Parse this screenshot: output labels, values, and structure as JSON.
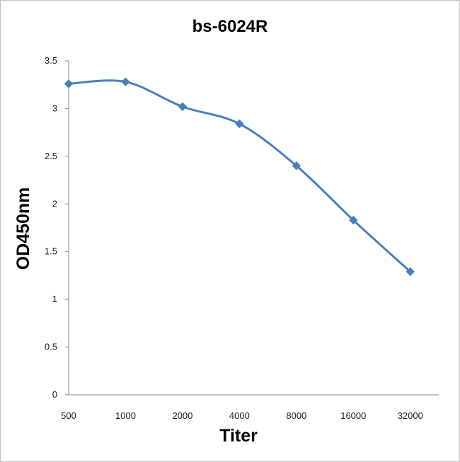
{
  "chart_data": {
    "type": "line",
    "title": "bs-6024R",
    "xlabel": "Titer",
    "ylabel": "OD450nm",
    "categories": [
      "500",
      "1000",
      "2000",
      "4000",
      "8000",
      "16000",
      "32000"
    ],
    "series": [
      {
        "values": [
          3.26,
          3.28,
          3.02,
          2.84,
          2.4,
          1.83,
          1.29
        ],
        "color": "#4a7ebb"
      }
    ],
    "ylim": [
      0,
      3.5
    ],
    "yticks": [
      "0",
      "0.5",
      "1",
      "1.5",
      "2",
      "2.5",
      "3",
      "3.5"
    ],
    "grid": false,
    "legend": "none",
    "smooth": true,
    "marker": "diamond"
  }
}
